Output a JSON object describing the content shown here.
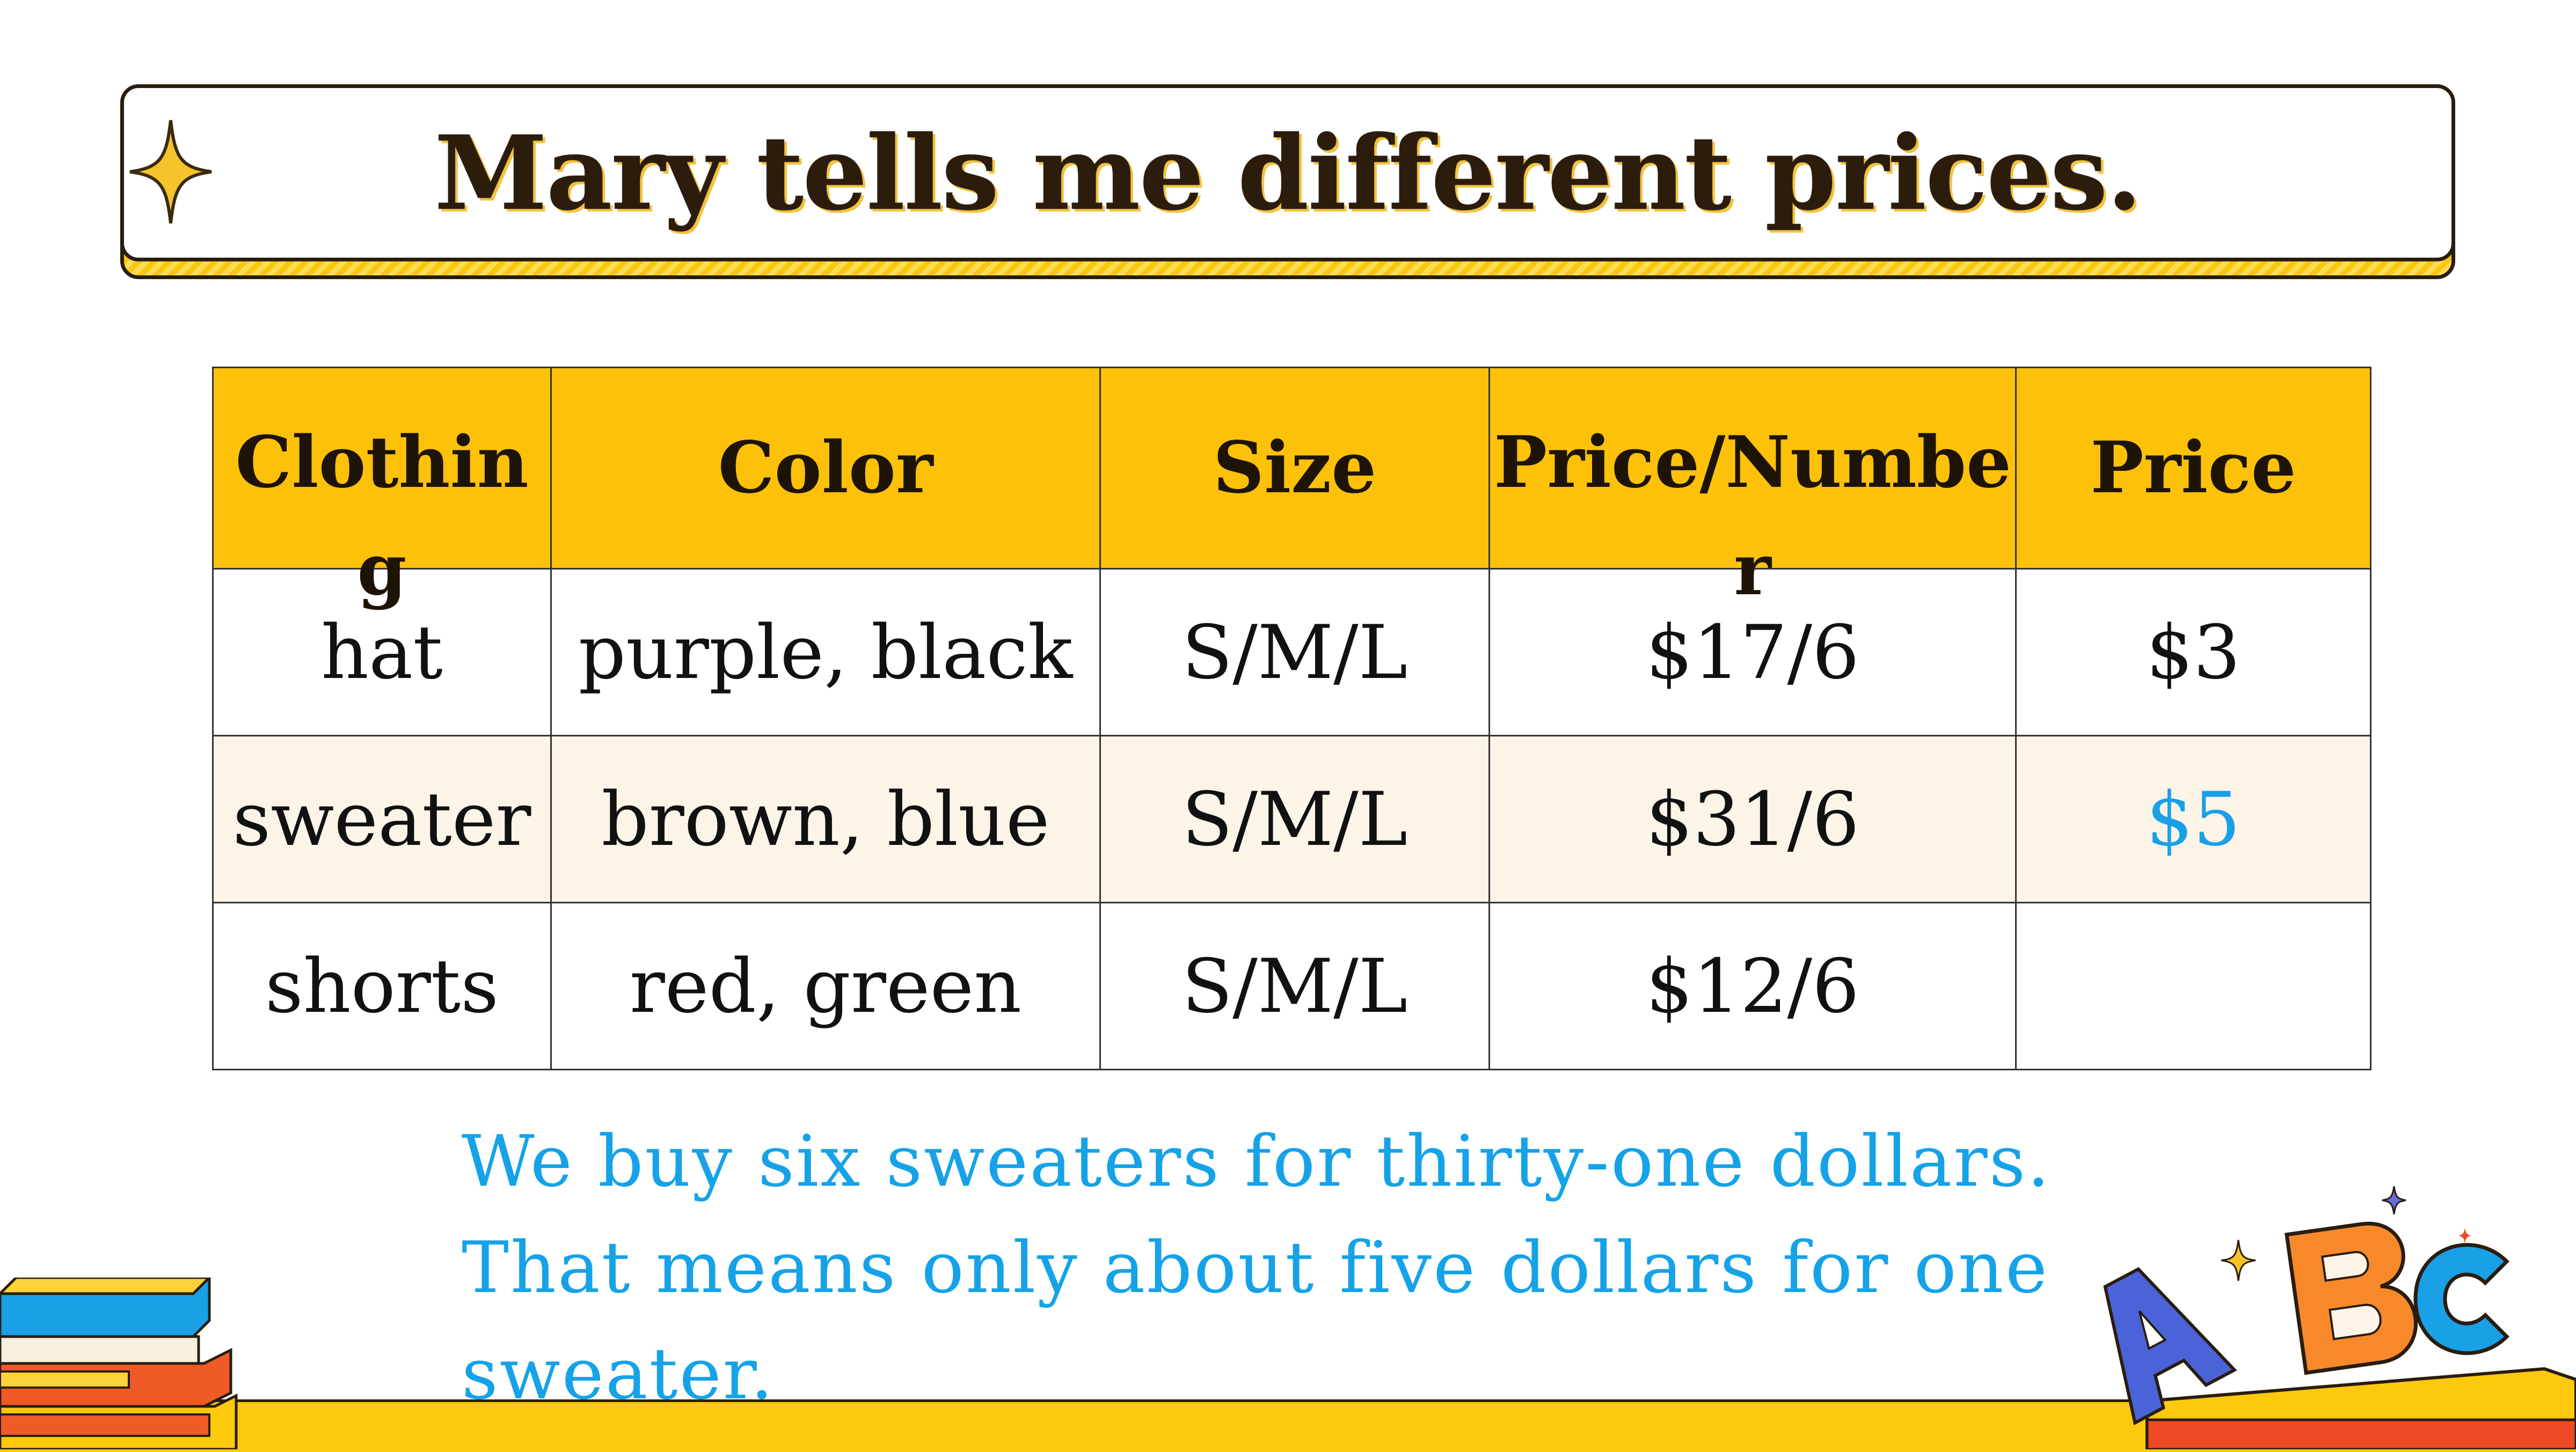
{
  "slide": {
    "title": "Mary tells me different prices."
  },
  "table": {
    "headers": [
      "Clothing",
      "Color",
      "Size",
      "Price/Number",
      "Price"
    ],
    "rows": [
      [
        "hat",
        "purple, black",
        "S/M/L",
        "$17/6",
        "$3"
      ],
      [
        "sweater",
        "brown, blue",
        "S/M/L",
        "$31/6",
        "$5"
      ],
      [
        "shorts",
        "red, green",
        "S/M/L",
        "$12/6",
        ""
      ]
    ]
  },
  "explanation": {
    "line1": "We buy six sweaters for thirty-one dollars.",
    "line2": "That means only about five dollars for one",
    "line3": "sweater."
  },
  "colors": {
    "header_bg": "#fdc10a",
    "highlight_text": "#1aa0e6",
    "alt_row_bg": "#fdf4e8"
  },
  "decor": {
    "top_left": "sparkle-icon",
    "bottom_left": "books-stack-icon",
    "bottom_right": "abc-blocks-icon"
  }
}
